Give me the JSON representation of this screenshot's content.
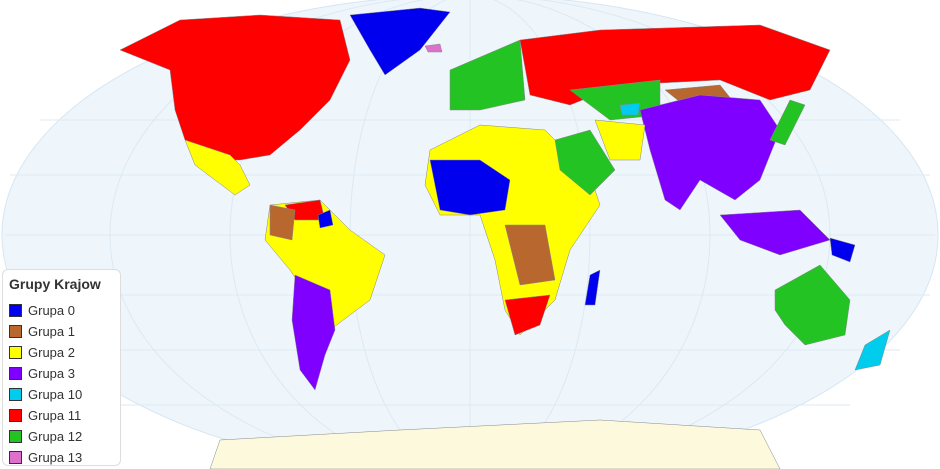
{
  "legend": {
    "title": "Grupy Krajow",
    "items": [
      {
        "label": "Grupa 0",
        "color": "#0000ee"
      },
      {
        "label": "Grupa 1",
        "color": "#b8682e"
      },
      {
        "label": "Grupa 2",
        "color": "#ffff00"
      },
      {
        "label": "Grupa 3",
        "color": "#8000ff"
      },
      {
        "label": "Grupa 10",
        "color": "#00ccee"
      },
      {
        "label": "Grupa 11",
        "color": "#ff0000"
      },
      {
        "label": "Grupa 12",
        "color": "#22c322"
      },
      {
        "label": "Grupa 13",
        "color": "#dd70cc"
      }
    ]
  },
  "colors": {
    "ocean": "#eef6fc",
    "antarctica": "#fdf9dd"
  }
}
